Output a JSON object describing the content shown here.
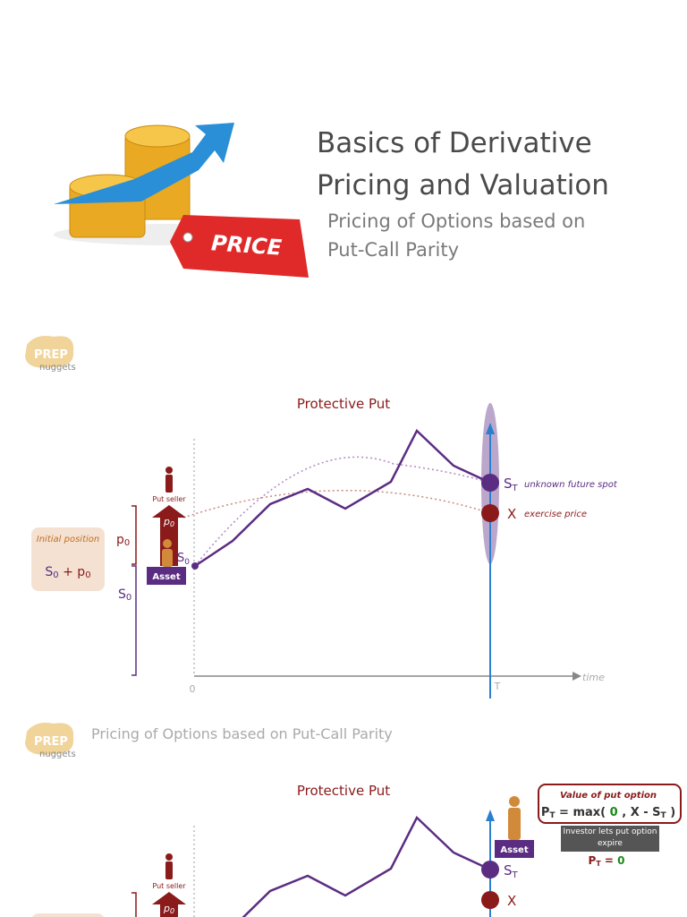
{
  "header": {
    "title_line1": "Basics of Derivative",
    "title_line2": "Pricing and Valuation",
    "subtitle_line1": "Pricing of Options based on",
    "subtitle_line2": "Put-Call Parity",
    "tag": "PRICE"
  },
  "logo": {
    "top": "PREP",
    "bottom": "nuggets"
  },
  "slide1": {
    "title": "Protective Put",
    "put_seller": "Put seller",
    "p0": {
      "base": "p",
      "sub": "0"
    },
    "s0": {
      "base": "S",
      "sub": "0"
    },
    "asset": "Asset",
    "initial_position": "Initial position",
    "initial_formula": {
      "s": "S",
      "s_sub": "0",
      "plus": " + p",
      "p_sub": "0"
    },
    "brace_p0": {
      "base": "p",
      "sub": "0"
    },
    "brace_s0": {
      "base": "S",
      "sub": "0"
    },
    "st": {
      "base": "S",
      "sub": "T"
    },
    "st_note": "unknown future spot",
    "x": "X",
    "x_note": "exercise price",
    "time": "time",
    "origin": "0",
    "t": "T"
  },
  "slide2": {
    "header": "Pricing of Options based on Put-Call Parity",
    "title": "Protective Put",
    "value_title": "Value of put option",
    "formula": {
      "lhs": "P",
      "lhs_sub": "T",
      "mid": " = max( ",
      "zero": "0",
      "rest": " , X - S",
      "rest_sub": "T",
      "close": " )"
    },
    "expire": "Investor lets put option expire",
    "pt0": {
      "lhs": "P",
      "lhs_sub": "T",
      "eq": " = ",
      "zero": "0"
    },
    "asset": "Asset",
    "st": {
      "base": "S",
      "sub": "T"
    },
    "x": "X",
    "put_seller": "Put seller",
    "p0": {
      "base": "p",
      "sub": "0"
    }
  }
}
